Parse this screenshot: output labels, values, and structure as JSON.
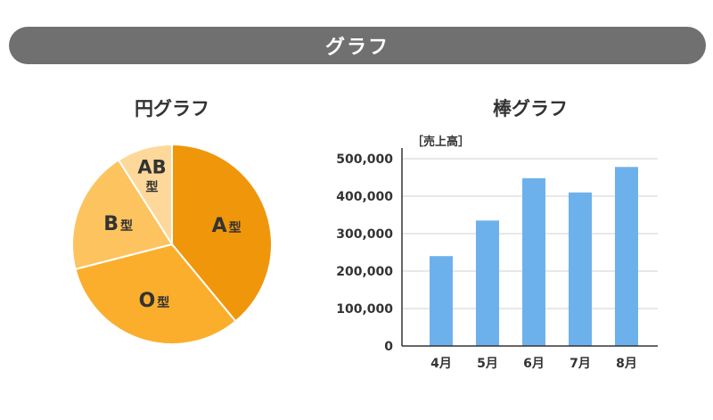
{
  "header": {
    "title": "グラフ"
  },
  "chart_data": [
    {
      "type": "pie",
      "title": "円グラフ",
      "slices": [
        {
          "label": "A",
          "suffix": "型",
          "value": 39,
          "color": "#f0960a"
        },
        {
          "label": "O",
          "suffix": "型",
          "value": 32,
          "color": "#fbae2c"
        },
        {
          "label": "B",
          "suffix": "型",
          "value": 20,
          "color": "#fdc35f"
        },
        {
          "label": "AB",
          "suffix": "型",
          "value": 9,
          "color": "#fdd89a"
        }
      ]
    },
    {
      "type": "bar",
      "title": "棒グラフ",
      "ylabel": "［売上高］",
      "categories": [
        "4月",
        "5月",
        "6月",
        "7月",
        "8月"
      ],
      "values": [
        240000,
        335000,
        448000,
        410000,
        478000
      ],
      "ylim": [
        0,
        500000
      ],
      "yticks": [
        "0",
        "100,000",
        "200,000",
        "300,000",
        "400,000",
        "500,000"
      ],
      "grid": true,
      "color": "#6db1ec"
    }
  ]
}
